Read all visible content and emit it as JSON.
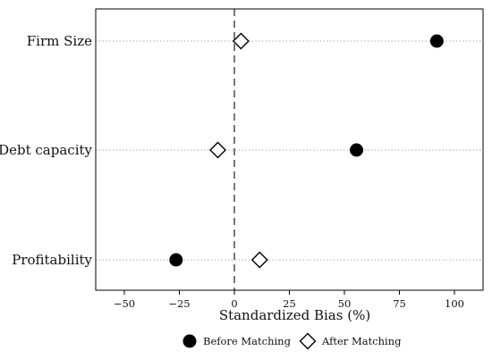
{
  "chart_data": {
    "type": "scatter",
    "categories": [
      "Firm Size",
      "Debt capacity",
      "Profitability"
    ],
    "series": [
      {
        "name": "Before Matching",
        "marker": "filled-circle",
        "values": [
          92,
          55.5,
          -26.5
        ]
      },
      {
        "name": "After Matching",
        "marker": "hollow-diamond",
        "values": [
          3,
          -7.5,
          11.5
        ]
      }
    ],
    "xlabel": "Standardized Bias (%)",
    "xticks": [
      -50,
      -25,
      0,
      25,
      50,
      75,
      100
    ],
    "tick_labels": [
      "−50",
      "−25",
      "0",
      "25",
      "50",
      "75",
      "100"
    ],
    "xlim": [
      -63,
      113
    ],
    "reference_line": 0,
    "grid": "dotted horizontal lines at categories",
    "legend_position": "bottom",
    "colors": {
      "marker": "#000000",
      "grid": "#9a9a9a",
      "reference": "#777777"
    }
  }
}
